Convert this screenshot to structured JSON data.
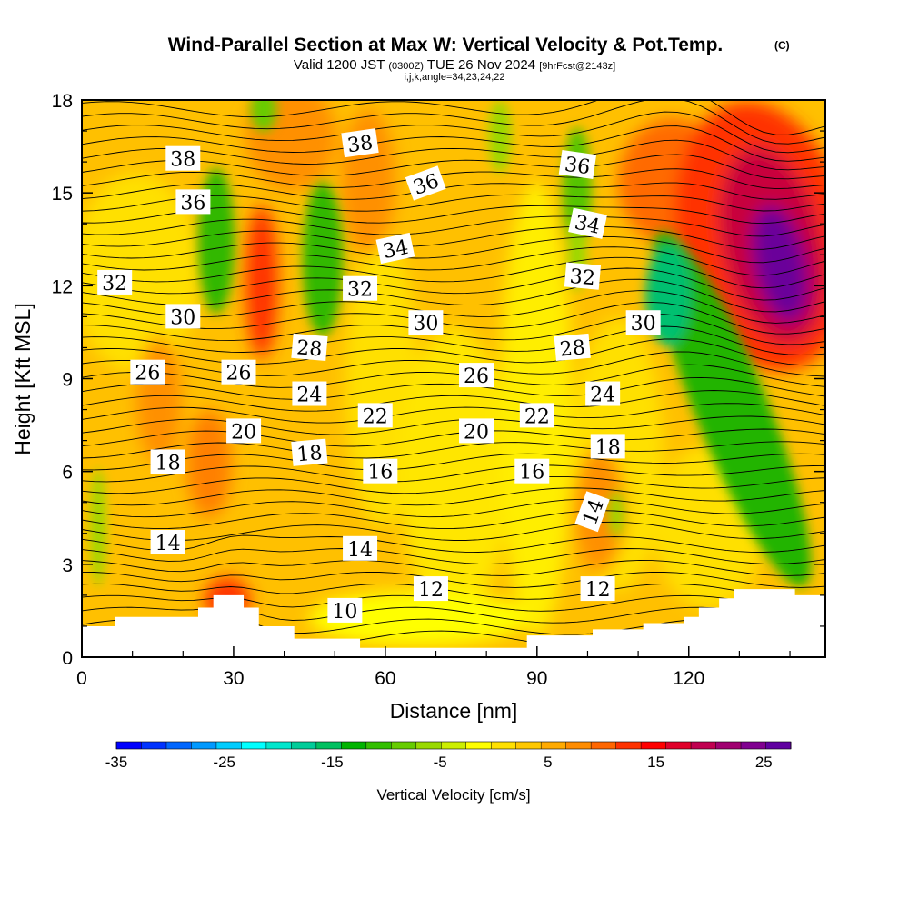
{
  "header": {
    "title": "Wind-Parallel Section at Max W: Vertical Velocity & Pot.Temp.",
    "title_mark": "(C)",
    "valid_prefix": "Valid 1200 JST",
    "valid_utc": "(0300Z)",
    "valid_date": "TUE 26 Nov 2024",
    "valid_fcst": "[9hrFcst@2143z]",
    "indices": "i,j,k,angle=34,23,24,22"
  },
  "chart_data": {
    "type": "heatmap",
    "title": "Wind-Parallel Section at Max W: Vertical Velocity & Pot.Temp.",
    "xlabel": "Distance [nm]",
    "ylabel": "Height [Kft MSL]",
    "xlim": [
      0,
      147
    ],
    "ylim": [
      0,
      18
    ],
    "x_ticks": [
      0,
      30,
      60,
      90,
      120
    ],
    "y_ticks": [
      0,
      3,
      6,
      9,
      12,
      15,
      18
    ],
    "grid": false,
    "colorbar": {
      "label": "Vertical Velocity [cm/s]",
      "placement": "bottom",
      "range": [
        -35,
        27.5
      ],
      "step": 2.5,
      "tick_values": [
        -35,
        -25,
        -15,
        -5,
        5,
        15,
        25
      ],
      "tick_labels": [
        "-35",
        "-25",
        "-15",
        "-5",
        "5",
        "15",
        "25"
      ],
      "colors": [
        "#0000ff",
        "#0033ff",
        "#0066ff",
        "#0099ff",
        "#00ccff",
        "#00ffff",
        "#00e6cc",
        "#00cc99",
        "#00c060",
        "#00b400",
        "#33bf00",
        "#66cc00",
        "#99d900",
        "#ccee00",
        "#ffff00",
        "#ffe000",
        "#ffc800",
        "#ffaa00",
        "#ff8c00",
        "#ff6600",
        "#ff3300",
        "#ff0000",
        "#e0002a",
        "#c00050",
        "#a00070",
        "#800090",
        "#6000a0"
      ]
    },
    "contour_field": "Potential Temperature",
    "contour_labels": [
      {
        "text": "38",
        "x": 20,
        "y": 16.1,
        "rot": 0
      },
      {
        "text": "38",
        "x": 55,
        "y": 16.6,
        "rot": -8
      },
      {
        "text": "36",
        "x": 22,
        "y": 14.7,
        "rot": 0
      },
      {
        "text": "36",
        "x": 68,
        "y": 15.3,
        "rot": -20
      },
      {
        "text": "36",
        "x": 98,
        "y": 15.9,
        "rot": 8
      },
      {
        "text": "34",
        "x": 62,
        "y": 13.2,
        "rot": -12
      },
      {
        "text": "34",
        "x": 100,
        "y": 14.0,
        "rot": 12
      },
      {
        "text": "32",
        "x": 6.5,
        "y": 12.1,
        "rot": 0
      },
      {
        "text": "32",
        "x": 55,
        "y": 11.9,
        "rot": 0
      },
      {
        "text": "32",
        "x": 99,
        "y": 12.3,
        "rot": 5
      },
      {
        "text": "30",
        "x": 20,
        "y": 11.0,
        "rot": 0
      },
      {
        "text": "30",
        "x": 68,
        "y": 10.8,
        "rot": 0
      },
      {
        "text": "30",
        "x": 111,
        "y": 10.8,
        "rot": 0
      },
      {
        "text": "28",
        "x": 45,
        "y": 10.0,
        "rot": 5
      },
      {
        "text": "28",
        "x": 97,
        "y": 10.0,
        "rot": -5
      },
      {
        "text": "26",
        "x": 13,
        "y": 9.2,
        "rot": 0
      },
      {
        "text": "26",
        "x": 31,
        "y": 9.2,
        "rot": 0
      },
      {
        "text": "26",
        "x": 78,
        "y": 9.1,
        "rot": 0
      },
      {
        "text": "24",
        "x": 45,
        "y": 8.5,
        "rot": 0
      },
      {
        "text": "24",
        "x": 103,
        "y": 8.5,
        "rot": 0
      },
      {
        "text": "22",
        "x": 58,
        "y": 7.8,
        "rot": 0
      },
      {
        "text": "22",
        "x": 90,
        "y": 7.8,
        "rot": 0
      },
      {
        "text": "20",
        "x": 32,
        "y": 7.3,
        "rot": 0
      },
      {
        "text": "20",
        "x": 78,
        "y": 7.3,
        "rot": 0
      },
      {
        "text": "18",
        "x": 17,
        "y": 6.3,
        "rot": 0
      },
      {
        "text": "18",
        "x": 45,
        "y": 6.6,
        "rot": -5
      },
      {
        "text": "18",
        "x": 104,
        "y": 6.8,
        "rot": 0
      },
      {
        "text": "16",
        "x": 59,
        "y": 6.0,
        "rot": 0
      },
      {
        "text": "16",
        "x": 89,
        "y": 6.0,
        "rot": 0
      },
      {
        "text": "14",
        "x": 17,
        "y": 3.7,
        "rot": 0
      },
      {
        "text": "14",
        "x": 55,
        "y": 3.5,
        "rot": 0
      },
      {
        "text": "14",
        "x": 101,
        "y": 4.7,
        "rot": -70
      },
      {
        "text": "12",
        "x": 69,
        "y": 2.2,
        "rot": 0
      },
      {
        "text": "12",
        "x": 102,
        "y": 2.2,
        "rot": 0
      },
      {
        "text": "10",
        "x": 52,
        "y": 1.5,
        "rot": 0
      }
    ],
    "terrain_kft": [
      [
        0,
        1.0
      ],
      [
        6.5,
        1.0
      ],
      [
        6.5,
        1.3
      ],
      [
        23,
        1.3
      ],
      [
        23,
        1.6
      ],
      [
        26,
        1.6
      ],
      [
        26,
        2.0
      ],
      [
        32,
        2.0
      ],
      [
        32,
        1.6
      ],
      [
        35,
        1.6
      ],
      [
        35,
        1.0
      ],
      [
        42,
        1.0
      ],
      [
        42,
        0.6
      ],
      [
        55,
        0.6
      ],
      [
        55,
        0.3
      ],
      [
        88,
        0.3
      ],
      [
        88,
        0.7
      ],
      [
        101,
        0.7
      ],
      [
        101,
        0.9
      ],
      [
        111,
        0.9
      ],
      [
        111,
        1.1
      ],
      [
        119,
        1.1
      ],
      [
        119,
        1.3
      ],
      [
        122,
        1.3
      ],
      [
        122,
        1.6
      ],
      [
        126,
        1.6
      ],
      [
        126,
        1.9
      ],
      [
        129,
        1.9
      ],
      [
        129,
        2.2
      ],
      [
        141,
        2.2
      ],
      [
        141,
        2.0
      ],
      [
        147,
        2.0
      ]
    ]
  }
}
